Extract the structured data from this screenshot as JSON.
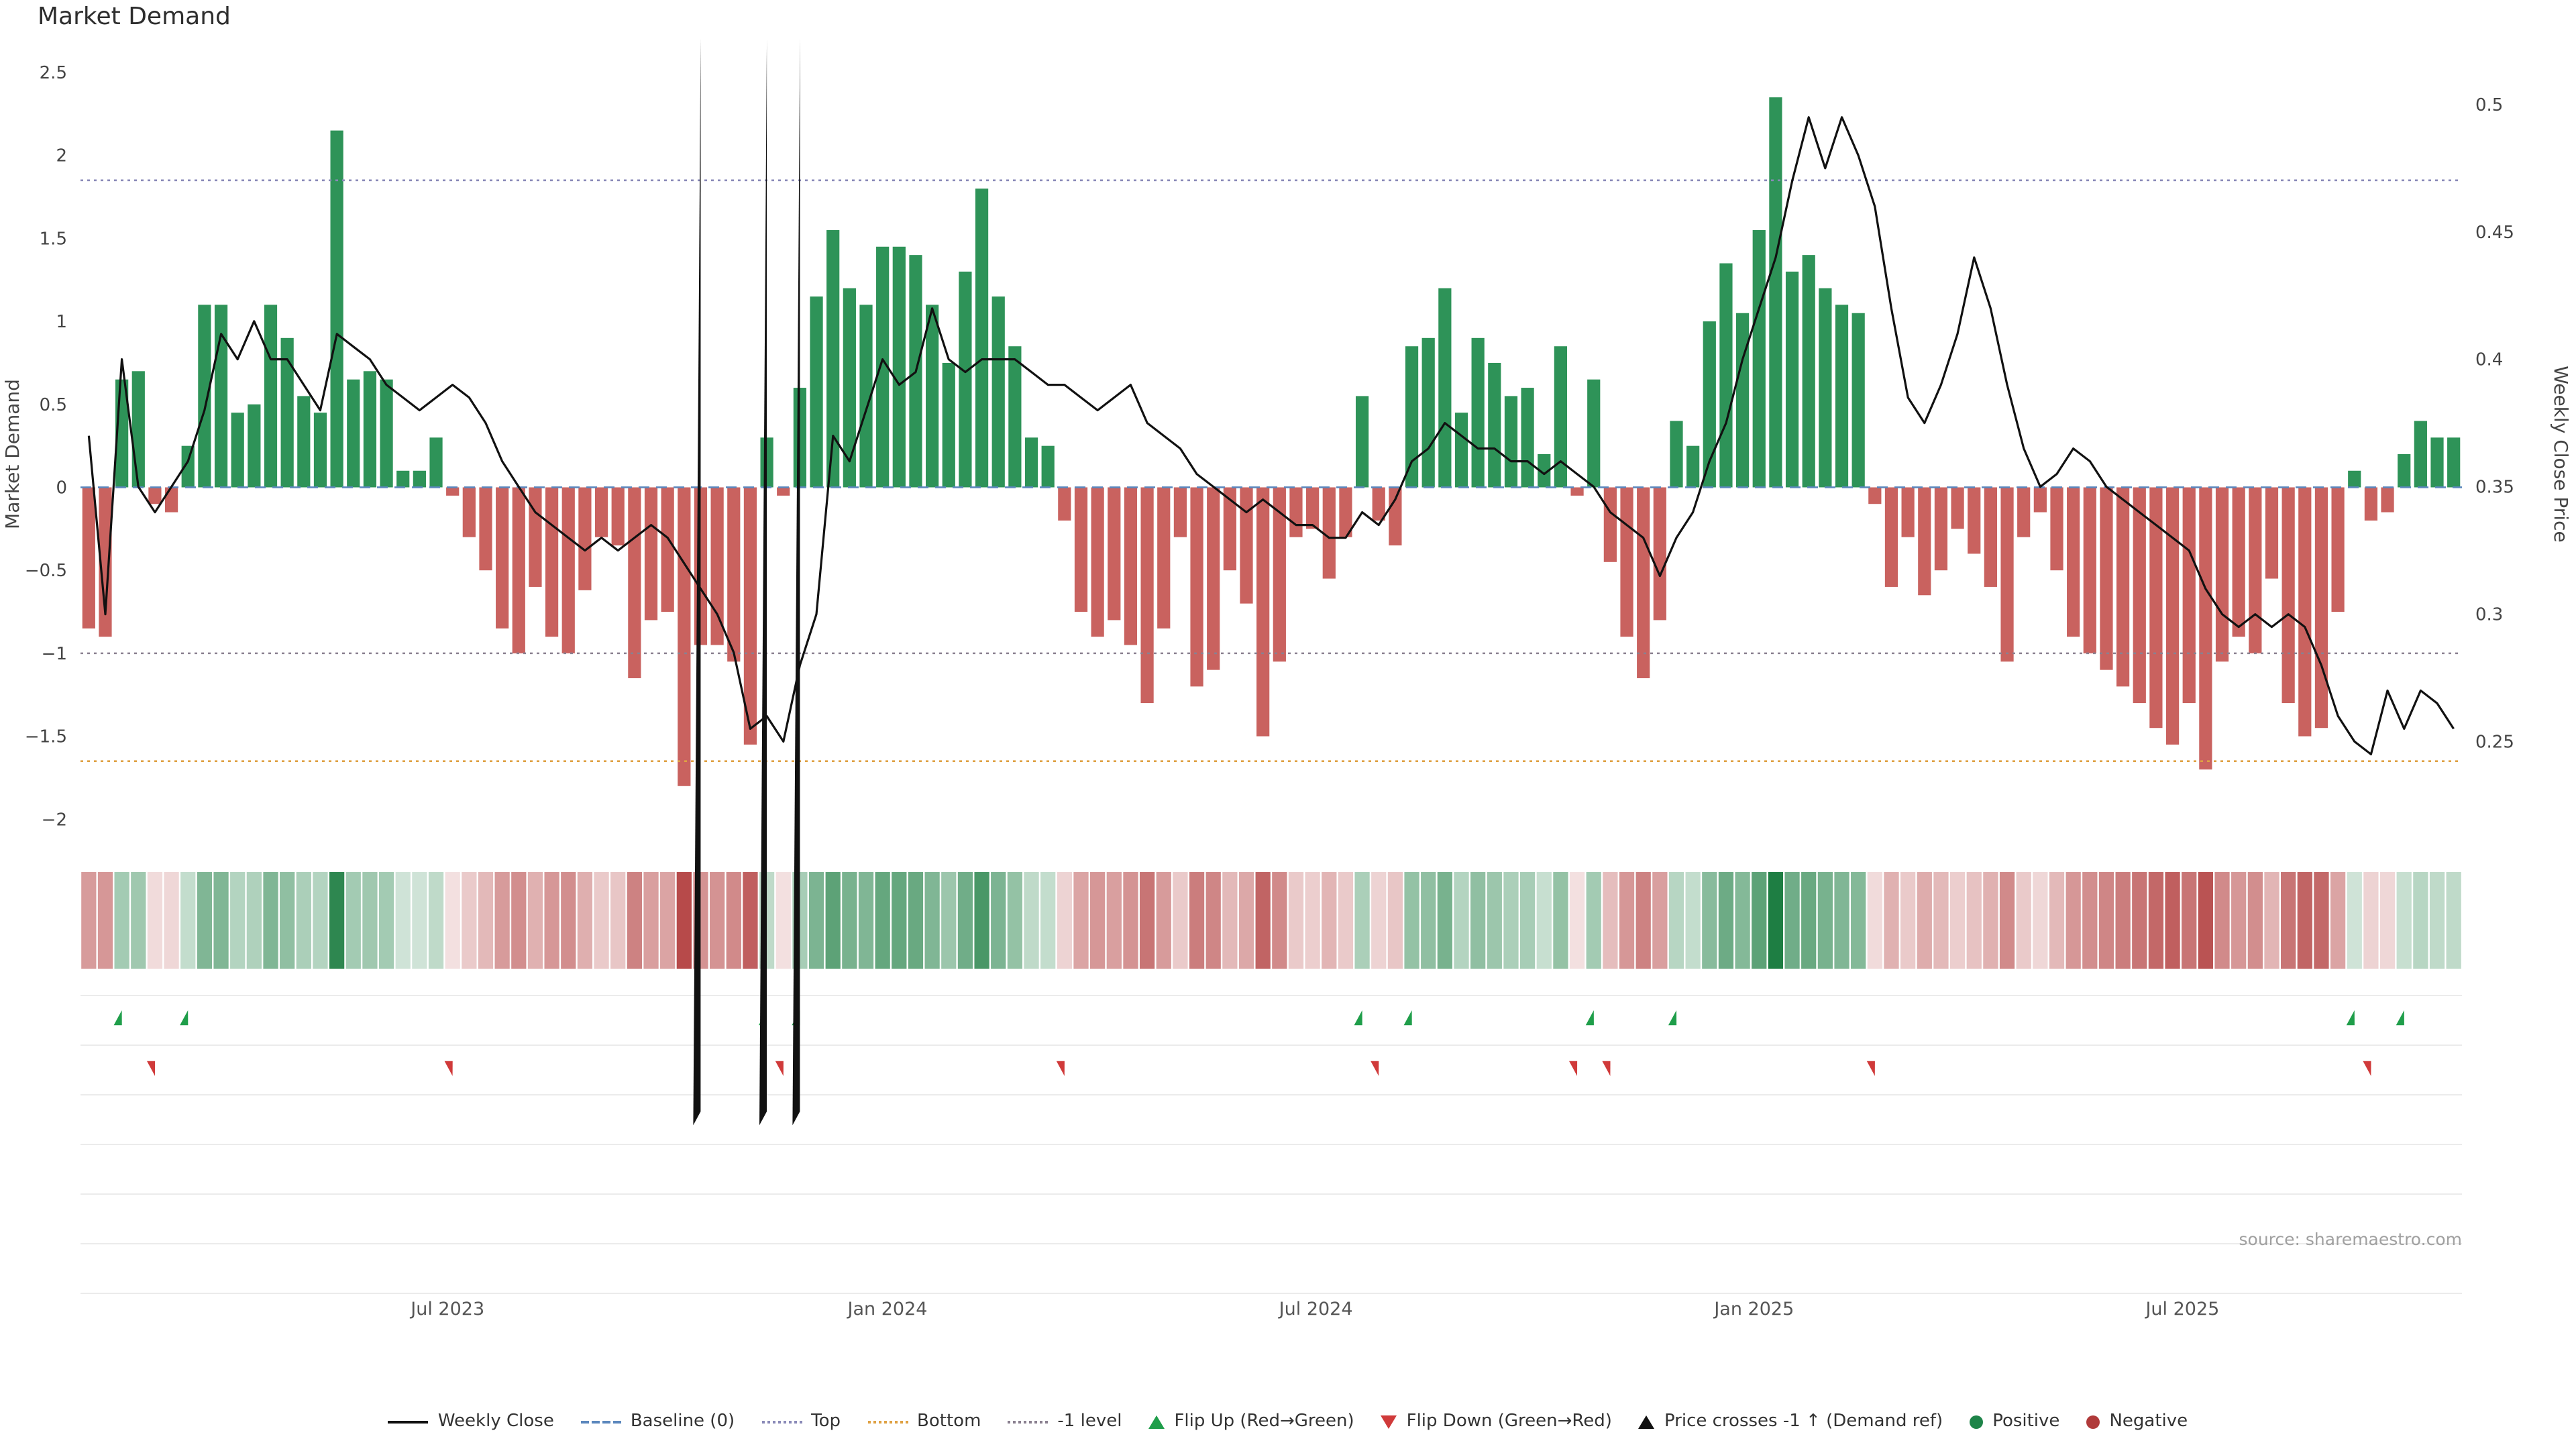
{
  "title": "Market Demand",
  "source_note": "source: sharemaestro.com",
  "colors": {
    "positive": "#2e9358",
    "negative": "#c9625f",
    "price_line": "#111111",
    "baseline": "#5b87bd",
    "top_line": "#8a8ab8",
    "bottom_line": "#dfa143",
    "minus1_line": "#8a8090",
    "flip_up": "#1f9e4a",
    "flip_down": "#d03a3a",
    "price_cross": "#111111",
    "heat_positive": "#1e7e43",
    "heat_negative": "#b74a4a",
    "panel_grid": "#ebebeb",
    "tick_text": "#444444",
    "source_text": "#a0a0a0"
  },
  "chart_data": {
    "type": "bar",
    "subtype": "weekly demand bars + weekly close price line + intensity heatmap + signal marker rows",
    "title": "Market Demand",
    "x_unit": "week",
    "left_axis": {
      "label": "Market Demand",
      "min": -2.1,
      "max": 2.5,
      "ticks": [
        {
          "v": 2.5,
          "label": "2.5"
        },
        {
          "v": 2,
          "label": "2"
        },
        {
          "v": 1.5,
          "label": "1.5"
        },
        {
          "v": 1,
          "label": "1"
        },
        {
          "v": 0.5,
          "label": "0.5"
        },
        {
          "v": 0,
          "label": "0"
        },
        {
          "v": -0.5,
          "label": "−0.5"
        },
        {
          "v": -1,
          "label": "−1"
        },
        {
          "v": -1.5,
          "label": "−1.5"
        },
        {
          "v": -2,
          "label": "−2"
        }
      ]
    },
    "right_axis": {
      "label": "Weekly Close Price",
      "min": 0.213,
      "max": 0.5126,
      "ticks": [
        {
          "v": 0.5,
          "label": "0.5"
        },
        {
          "v": 0.45,
          "label": "0.45"
        },
        {
          "v": 0.4,
          "label": "0.4"
        },
        {
          "v": 0.35,
          "label": "0.35"
        },
        {
          "v": 0.3,
          "label": "0.3"
        },
        {
          "v": 0.25,
          "label": "0.25"
        }
      ]
    },
    "x_ticks": [
      {
        "pos": 21.7,
        "label": "Jul 2023"
      },
      {
        "pos": 48.3,
        "label": "Jan 2024"
      },
      {
        "pos": 74.2,
        "label": "Jul 2024"
      },
      {
        "pos": 100.7,
        "label": "Jan 2025"
      },
      {
        "pos": 126.6,
        "label": "Jul 2025"
      }
    ],
    "ref_lines": {
      "baseline": 0,
      "top": 1.85,
      "bottom": -1.65,
      "minus1_level": -1
    },
    "series": [
      {
        "name": "Market Demand",
        "type": "bar",
        "axis": "left",
        "values": [
          -0.85,
          -0.9,
          0.65,
          0.7,
          -0.1,
          -0.15,
          0.25,
          1.1,
          1.1,
          0.45,
          0.5,
          1.1,
          0.9,
          0.55,
          0.45,
          2.15,
          0.65,
          0.7,
          0.65,
          0.1,
          0.1,
          0.3,
          -0.05,
          -0.3,
          -0.5,
          -0.85,
          -1.0,
          -0.6,
          -0.9,
          -1.0,
          -0.62,
          -0.3,
          -0.35,
          -1.15,
          -0.8,
          -0.75,
          -1.8,
          -0.95,
          -0.95,
          -1.05,
          -1.55,
          0.3,
          -0.05,
          0.6,
          1.15,
          1.55,
          1.2,
          1.1,
          1.45,
          1.45,
          1.4,
          1.1,
          0.75,
          1.3,
          1.8,
          1.15,
          0.85,
          0.3,
          0.25,
          -0.2,
          -0.75,
          -0.9,
          -0.8,
          -0.95,
          -1.3,
          -0.85,
          -0.3,
          -1.2,
          -1.1,
          -0.5,
          -0.7,
          -1.5,
          -1.05,
          -0.3,
          -0.25,
          -0.55,
          -0.3,
          0.55,
          -0.2,
          -0.35,
          0.85,
          0.9,
          1.2,
          0.45,
          0.9,
          0.75,
          0.55,
          0.6,
          0.2,
          0.85,
          -0.05,
          0.65,
          -0.45,
          -0.9,
          -1.15,
          -0.8,
          0.4,
          0.25,
          1.0,
          1.35,
          1.05,
          1.55,
          2.35,
          1.3,
          1.4,
          1.2,
          1.1,
          1.05,
          -0.1,
          -0.6,
          -0.3,
          -0.65,
          -0.5,
          -0.25,
          -0.4,
          -0.6,
          -1.05,
          -0.3,
          -0.15,
          -0.5,
          -0.9,
          -1.0,
          -1.1,
          -1.2,
          -1.3,
          -1.45,
          -1.55,
          -1.3,
          -1.7,
          -1.05,
          -0.9,
          -1.0,
          -0.55,
          -1.3,
          -1.5,
          -1.45,
          -0.75,
          0.1,
          -0.2,
          -0.15,
          0.2,
          0.4,
          0.3,
          0.3
        ]
      },
      {
        "name": "Weekly Close",
        "type": "line",
        "axis": "right",
        "values": [
          0.37,
          0.3,
          0.4,
          0.35,
          0.34,
          0.35,
          0.36,
          0.38,
          0.41,
          0.4,
          0.415,
          0.4,
          0.4,
          0.39,
          0.38,
          0.41,
          0.405,
          0.4,
          0.39,
          0.385,
          0.38,
          0.385,
          0.39,
          0.385,
          0.375,
          0.36,
          0.35,
          0.34,
          0.335,
          0.33,
          0.325,
          0.33,
          0.325,
          0.33,
          0.335,
          0.33,
          0.32,
          0.31,
          0.3,
          0.285,
          0.255,
          0.26,
          0.25,
          0.28,
          0.3,
          0.37,
          0.36,
          0.38,
          0.4,
          0.39,
          0.395,
          0.42,
          0.4,
          0.395,
          0.4,
          0.4,
          0.4,
          0.395,
          0.39,
          0.39,
          0.385,
          0.38,
          0.385,
          0.39,
          0.375,
          0.37,
          0.365,
          0.355,
          0.35,
          0.345,
          0.34,
          0.345,
          0.34,
          0.335,
          0.335,
          0.33,
          0.33,
          0.34,
          0.335,
          0.345,
          0.36,
          0.365,
          0.375,
          0.37,
          0.365,
          0.365,
          0.36,
          0.36,
          0.355,
          0.36,
          0.355,
          0.35,
          0.34,
          0.335,
          0.33,
          0.315,
          0.33,
          0.34,
          0.36,
          0.375,
          0.4,
          0.42,
          0.44,
          0.47,
          0.495,
          0.475,
          0.495,
          0.48,
          0.46,
          0.42,
          0.385,
          0.375,
          0.39,
          0.41,
          0.44,
          0.42,
          0.39,
          0.365,
          0.35,
          0.355,
          0.365,
          0.36,
          0.35,
          0.345,
          0.34,
          0.335,
          0.33,
          0.325,
          0.31,
          0.3,
          0.295,
          0.3,
          0.295,
          0.3,
          0.295,
          0.28,
          0.26,
          0.25,
          0.245,
          0.27,
          0.255,
          0.27,
          0.265,
          0.255
        ]
      }
    ],
    "markers": {
      "flip_up_weeks": [
        2,
        6,
        41,
        43,
        77,
        80,
        91,
        96,
        137,
        140
      ],
      "flip_down_weeks": [
        4,
        22,
        42,
        59,
        78,
        90,
        92,
        108,
        138
      ],
      "price_cross_weeks": [
        37,
        41,
        43
      ]
    },
    "heatmap": {
      "note": "one cell per week, shaded by Market Demand value (green positive, red negative)"
    }
  },
  "legend": {
    "items": [
      {
        "name": "weekly-close",
        "label": "Weekly Close",
        "swatch": "line",
        "color": "#111111"
      },
      {
        "name": "baseline",
        "label": "Baseline (0)",
        "swatch": "dash",
        "color": "#5b87bd"
      },
      {
        "name": "top",
        "label": "Top",
        "swatch": "dotline",
        "color": "#8a8ab8"
      },
      {
        "name": "bottom",
        "label": "Bottom",
        "swatch": "dotline",
        "color": "#dfa143"
      },
      {
        "name": "minus1-level",
        "label": "-1 level",
        "swatch": "dotline",
        "color": "#8a8090"
      },
      {
        "name": "flip-up",
        "label": "Flip Up (Red→Green)",
        "swatch": "triup",
        "color": "#1f9e4a"
      },
      {
        "name": "flip-down",
        "label": "Flip Down (Green→Red)",
        "swatch": "tridown",
        "color": "#d03a3a"
      },
      {
        "name": "price-crosses",
        "label": "Price crosses -1 ↑ (Demand ref)",
        "swatch": "triup",
        "color": "#111111"
      },
      {
        "name": "positive",
        "label": "Positive",
        "swatch": "dot",
        "color": "#1e8449"
      },
      {
        "name": "negative",
        "label": "Negative",
        "swatch": "dot",
        "color": "#b03a3a"
      }
    ]
  }
}
